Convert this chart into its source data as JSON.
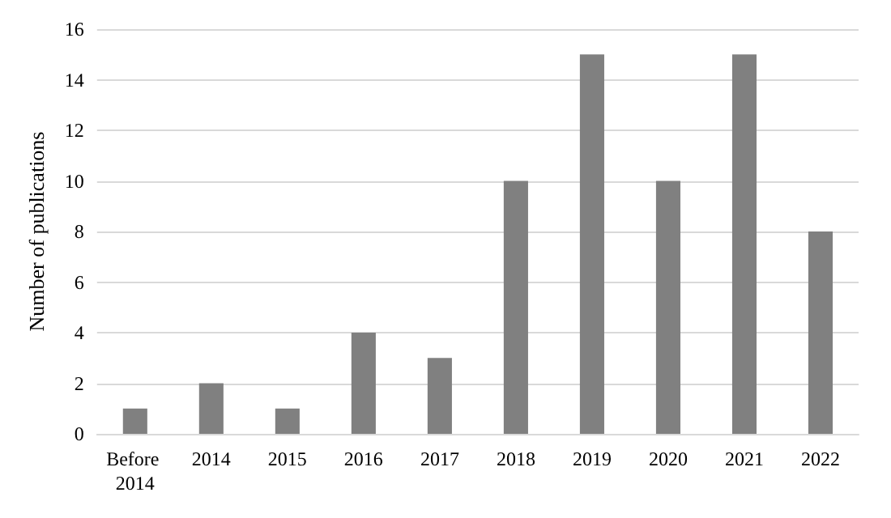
{
  "chart_data": {
    "type": "bar",
    "ylabel": "Number of publications",
    "categories": [
      "Before 2014",
      "2014",
      "2015",
      "2016",
      "2017",
      "2018",
      "2019",
      "2020",
      "2021",
      "2022"
    ],
    "values": [
      1,
      2,
      1,
      4,
      3,
      10,
      15,
      10,
      15,
      8
    ],
    "color": "#808080",
    "ylim": [
      0,
      16
    ],
    "yticks": [
      0,
      2,
      4,
      6,
      8,
      10,
      12,
      14,
      16
    ],
    "grid": "y"
  }
}
